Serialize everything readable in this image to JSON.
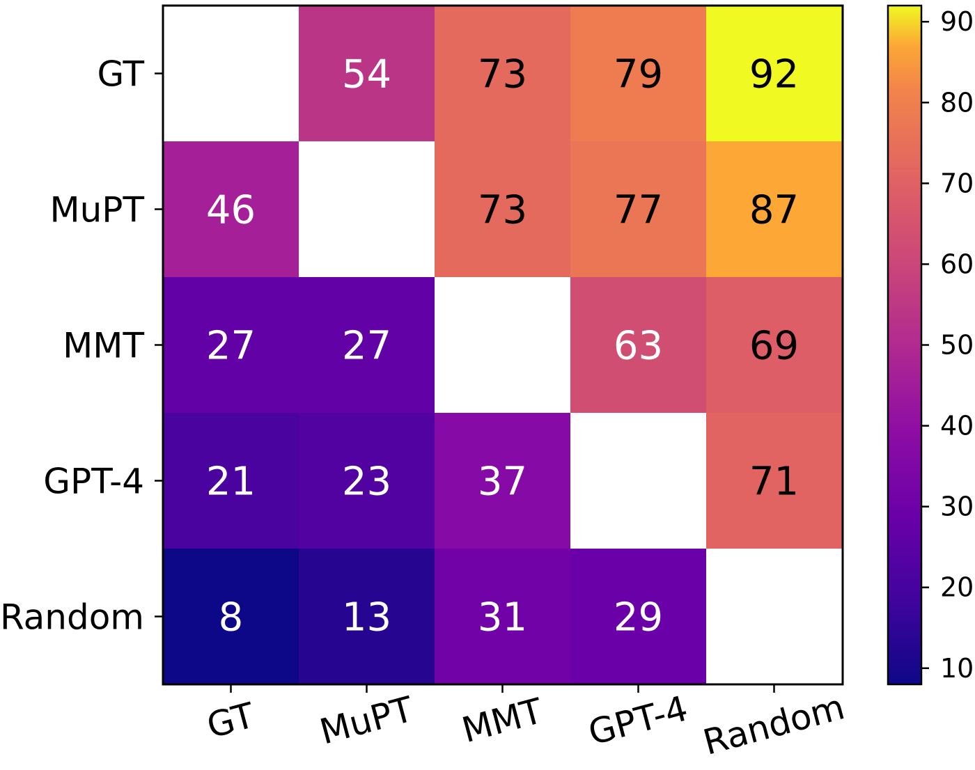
{
  "chart_data": {
    "type": "heatmap",
    "title": "",
    "xlabel": "",
    "ylabel": "",
    "x_categories": [
      "GT",
      "MuPT",
      "MMT",
      "GPT-4",
      "Random"
    ],
    "y_categories": [
      "GT",
      "MuPT",
      "MMT",
      "GPT-4",
      "Random"
    ],
    "values": [
      [
        null,
        54,
        73,
        79,
        92
      ],
      [
        46,
        null,
        73,
        77,
        87
      ],
      [
        27,
        27,
        null,
        63,
        69
      ],
      [
        21,
        23,
        37,
        null,
        71
      ],
      [
        8,
        13,
        31,
        29,
        null
      ]
    ],
    "colormap": "plasma",
    "color_range": [
      8,
      92
    ],
    "colorbar_ticks": [
      10,
      20,
      30,
      40,
      50,
      60,
      70,
      80,
      90
    ],
    "diagonal_color": "#ffffff",
    "annotation_dark_color": "#000000",
    "annotation_light_color": "#ffffff"
  }
}
